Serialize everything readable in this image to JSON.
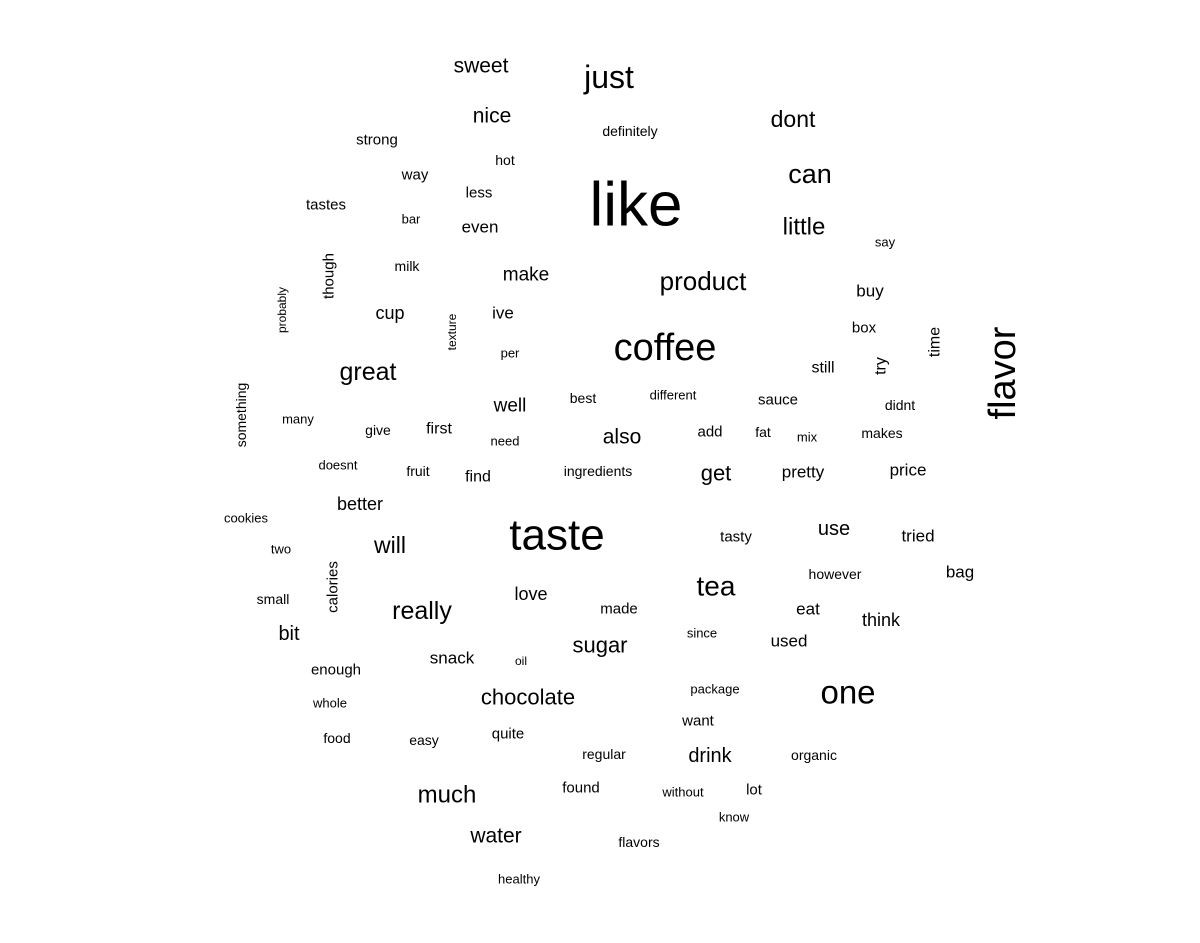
{
  "chart_data": {
    "type": "wordcloud",
    "title": "",
    "words": [
      {
        "text": "like",
        "weight": 62
      },
      {
        "text": "taste",
        "weight": 44
      },
      {
        "text": "coffee",
        "weight": 38
      },
      {
        "text": "flavor",
        "weight": 38
      },
      {
        "text": "one",
        "weight": 33
      },
      {
        "text": "just",
        "weight": 32
      },
      {
        "text": "tea",
        "weight": 28
      },
      {
        "text": "product",
        "weight": 26
      },
      {
        "text": "can",
        "weight": 27
      },
      {
        "text": "great",
        "weight": 25
      },
      {
        "text": "really",
        "weight": 25
      },
      {
        "text": "little",
        "weight": 24
      },
      {
        "text": "much",
        "weight": 24
      },
      {
        "text": "dont",
        "weight": 23
      },
      {
        "text": "will",
        "weight": 23
      },
      {
        "text": "chocolate",
        "weight": 22
      },
      {
        "text": "sugar",
        "weight": 22
      },
      {
        "text": "get",
        "weight": 22
      },
      {
        "text": "also",
        "weight": 21
      },
      {
        "text": "sweet",
        "weight": 21
      },
      {
        "text": "nice",
        "weight": 21
      },
      {
        "text": "water",
        "weight": 21
      },
      {
        "text": "drink",
        "weight": 20
      },
      {
        "text": "use",
        "weight": 20
      },
      {
        "text": "bit",
        "weight": 20
      },
      {
        "text": "make",
        "weight": 19
      },
      {
        "text": "well",
        "weight": 19
      },
      {
        "text": "better",
        "weight": 18
      },
      {
        "text": "love",
        "weight": 18
      },
      {
        "text": "think",
        "weight": 18
      },
      {
        "text": "cup",
        "weight": 18
      },
      {
        "text": "buy",
        "weight": 17
      },
      {
        "text": "eat",
        "weight": 17
      },
      {
        "text": "price",
        "weight": 17
      },
      {
        "text": "tried",
        "weight": 17
      },
      {
        "text": "pretty",
        "weight": 17
      },
      {
        "text": "snack",
        "weight": 17
      },
      {
        "text": "bag",
        "weight": 17
      },
      {
        "text": "even",
        "weight": 17
      },
      {
        "text": "used",
        "weight": 17
      },
      {
        "text": "ive",
        "weight": 17
      },
      {
        "text": "still",
        "weight": 16
      },
      {
        "text": "try",
        "weight": 16
      },
      {
        "text": "time",
        "weight": 16
      },
      {
        "text": "first",
        "weight": 16
      },
      {
        "text": "find",
        "weight": 16
      },
      {
        "text": "tastes",
        "weight": 15
      },
      {
        "text": "enough",
        "weight": 15
      },
      {
        "text": "quite",
        "weight": 15
      },
      {
        "text": "way",
        "weight": 15
      },
      {
        "text": "less",
        "weight": 15
      },
      {
        "text": "found",
        "weight": 15
      },
      {
        "text": "sauce",
        "weight": 15
      },
      {
        "text": "tasty",
        "weight": 15
      },
      {
        "text": "add",
        "weight": 15
      },
      {
        "text": "want",
        "weight": 15
      },
      {
        "text": "strong",
        "weight": 15
      },
      {
        "text": "lot",
        "weight": 15
      },
      {
        "text": "made",
        "weight": 15
      },
      {
        "text": "box",
        "weight": 15
      },
      {
        "text": "though",
        "weight": 15
      },
      {
        "text": "calories",
        "weight": 15
      },
      {
        "text": "ingredients",
        "weight": 14
      },
      {
        "text": "however",
        "weight": 14
      },
      {
        "text": "makes",
        "weight": 14
      },
      {
        "text": "didnt",
        "weight": 14
      },
      {
        "text": "milk",
        "weight": 14
      },
      {
        "text": "hot",
        "weight": 14
      },
      {
        "text": "definitely",
        "weight": 14
      },
      {
        "text": "flavors",
        "weight": 14
      },
      {
        "text": "something",
        "weight": 14
      },
      {
        "text": "fruit",
        "weight": 14
      },
      {
        "text": "fat",
        "weight": 14
      },
      {
        "text": "small",
        "weight": 14
      },
      {
        "text": "give",
        "weight": 14
      },
      {
        "text": "easy",
        "weight": 14
      },
      {
        "text": "food",
        "weight": 14
      },
      {
        "text": "regular",
        "weight": 14
      },
      {
        "text": "organic",
        "weight": 14
      },
      {
        "text": "best",
        "weight": 14
      },
      {
        "text": "package",
        "weight": 13
      },
      {
        "text": "since",
        "weight": 13
      },
      {
        "text": "healthy",
        "weight": 13
      },
      {
        "text": "doesnt",
        "weight": 13
      },
      {
        "text": "need",
        "weight": 13
      },
      {
        "text": "mix",
        "weight": 13
      },
      {
        "text": "cookies",
        "weight": 13
      },
      {
        "text": "many",
        "weight": 13
      },
      {
        "text": "without",
        "weight": 13
      },
      {
        "text": "bar",
        "weight": 13
      },
      {
        "text": "two",
        "weight": 13
      },
      {
        "text": "whole",
        "weight": 13
      },
      {
        "text": "say",
        "weight": 13
      },
      {
        "text": "different",
        "weight": 13
      },
      {
        "text": "know",
        "weight": 13
      },
      {
        "text": "per",
        "weight": 13
      },
      {
        "text": "oil",
        "weight": 12
      },
      {
        "text": "probably",
        "weight": 12
      },
      {
        "text": "texture",
        "weight": 12
      }
    ]
  }
}
